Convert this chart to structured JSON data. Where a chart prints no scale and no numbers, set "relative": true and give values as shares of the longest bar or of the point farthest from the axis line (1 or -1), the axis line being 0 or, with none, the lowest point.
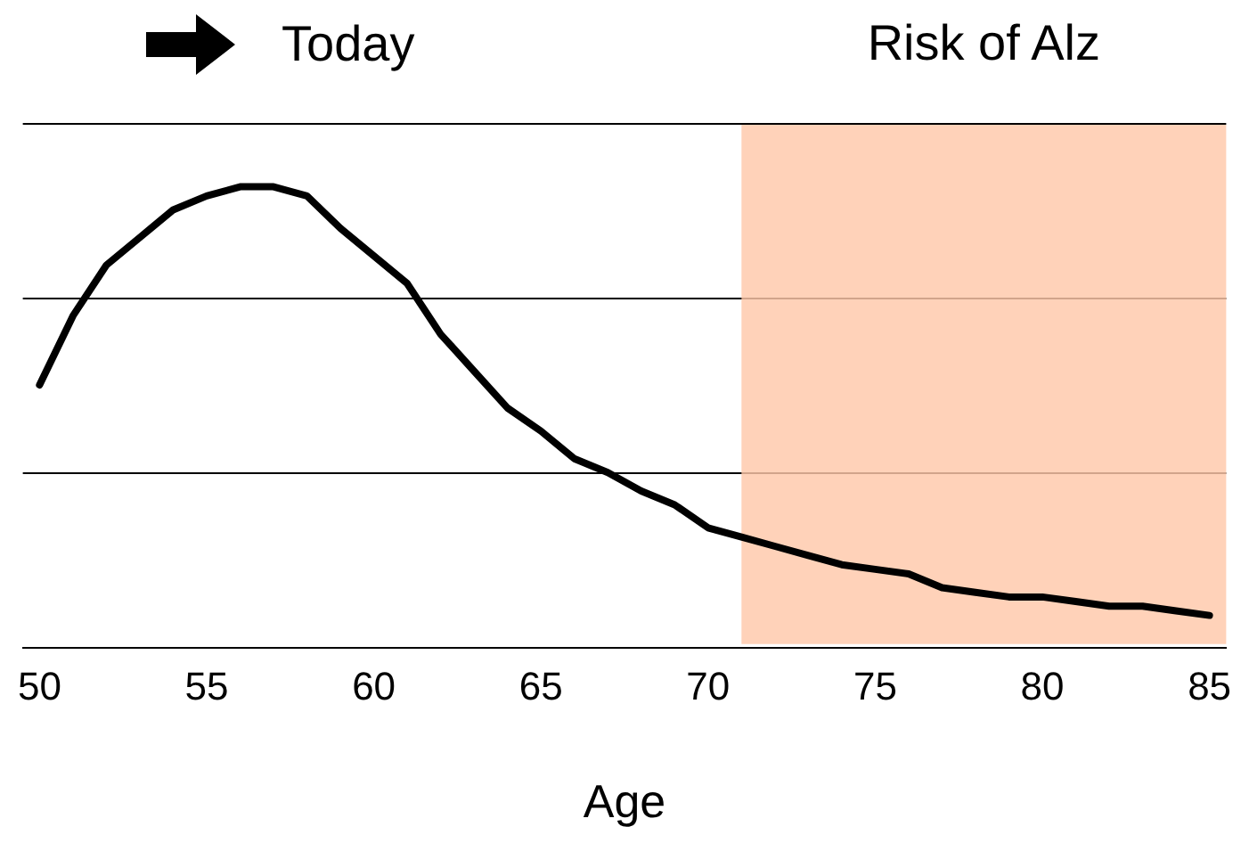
{
  "chart_data": {
    "type": "line",
    "relative": true,
    "xlabel": "Age",
    "xlim": [
      49.5,
      85.5
    ],
    "xticks": [
      50,
      55,
      60,
      65,
      70,
      75,
      80,
      85
    ],
    "legend": false,
    "ref_lines": [
      {
        "axis": "y",
        "value": 0.38,
        "color": "#000000"
      },
      {
        "axis": "y",
        "value": 0.76,
        "color": "#000000"
      },
      {
        "axis": "y",
        "value": 1.14,
        "color": "#000000"
      }
    ],
    "marker": "none",
    "line_style": "solid",
    "annotations": [
      "Today"
    ],
    "bands": [
      {
        "axis": "x",
        "from": 71,
        "to": 85.5,
        "label": "Risk of Alz",
        "color": "#ffc8aa"
      }
    ],
    "series": [
      {
        "color": "#000000",
        "x": [
          50,
          51,
          52,
          53,
          54,
          55,
          56,
          57,
          58,
          59,
          60,
          61,
          62,
          63,
          64,
          65,
          66,
          67,
          68,
          69,
          70,
          71,
          72,
          73,
          74,
          75,
          76,
          77,
          78,
          79,
          80,
          81,
          82,
          83,
          84,
          85
        ],
        "values": [
          0.57,
          0.72,
          0.83,
          0.89,
          0.95,
          0.98,
          1.0,
          1.0,
          0.98,
          0.91,
          0.85,
          0.79,
          0.68,
          0.6,
          0.52,
          0.47,
          0.41,
          0.38,
          0.34,
          0.31,
          0.26,
          0.24,
          0.22,
          0.2,
          0.18,
          0.17,
          0.16,
          0.13,
          0.12,
          0.11,
          0.11,
          0.1,
          0.09,
          0.09,
          0.08,
          0.07
        ]
      }
    ]
  }
}
